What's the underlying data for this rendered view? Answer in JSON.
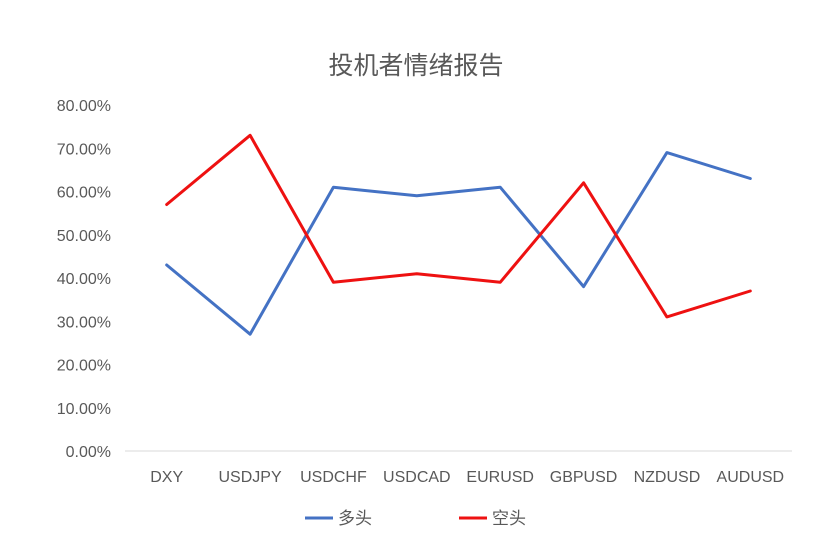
{
  "chart_data": {
    "type": "line",
    "title": "投机者情绪报告",
    "categories": [
      "DXY",
      "USDJPY",
      "USDCHF",
      "USDCAD",
      "EURUSD",
      "GBPUSD",
      "NZDUSD",
      "AUDUSD"
    ],
    "series": [
      {
        "name": "多头",
        "color": "#4472C4",
        "values": [
          43,
          27,
          61,
          59,
          61,
          38,
          69,
          63
        ]
      },
      {
        "name": "空头",
        "color": "#EE1111",
        "values": [
          57,
          73,
          39,
          41,
          39,
          62,
          31,
          37
        ]
      }
    ],
    "ylim": [
      0,
      80
    ],
    "y_ticks": [
      "0.00%",
      "10.00%",
      "20.00%",
      "30.00%",
      "40.00%",
      "50.00%",
      "60.00%",
      "70.00%",
      "80.00%"
    ],
    "xlabel": "",
    "ylabel": "",
    "grid": false,
    "legend_position": "bottom"
  }
}
